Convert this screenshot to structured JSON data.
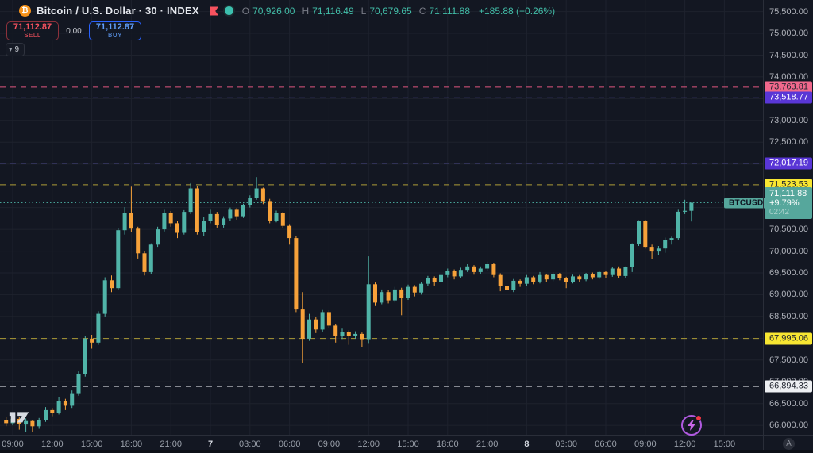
{
  "toolbar": {
    "symbol_title": "Bitcoin / U.S. Dollar · 30 · INDEX",
    "ohlc": {
      "open_label": "O",
      "open": "70,926.00",
      "high_label": "H",
      "high": "71,116.49",
      "low_label": "L",
      "low": "70,679.65",
      "close_label": "C",
      "close": "71,111.88",
      "change": "+185.88 (+0.26%)"
    },
    "sell": {
      "price": "71,112.87",
      "label": "SELL"
    },
    "spread": "0.00",
    "buy": {
      "price": "71,112.87",
      "label": "BUY"
    },
    "legend_collapsed_count": "9",
    "icons": [
      "bitcoin-icon",
      "flag-icon",
      "market-status-dot"
    ]
  },
  "axis_button_label": "A",
  "colors": {
    "background": "#131722",
    "grid": "#1e222d",
    "up": "#50b4a8",
    "down": "#f7a23a",
    "accent_teal": "#42bda8",
    "sell_red": "#f7525f",
    "buy_blue": "#2962ff"
  },
  "chart_data": {
    "type": "candlestick",
    "symbol": "BTCUSD",
    "interval_minutes": 30,
    "up_color": "#50b4a8",
    "down_color": "#f7a23a",
    "y_axis": {
      "min": 66000,
      "max": 75500,
      "tick_step": 500
    },
    "price_ticks": [
      [
        75500,
        "75,500.00"
      ],
      [
        75000,
        "75,000.00"
      ],
      [
        74500,
        "74,500.00"
      ],
      [
        74000,
        "74,000.00"
      ],
      [
        73500,
        "73,500.00"
      ],
      [
        73000,
        "73,000.00"
      ],
      [
        72500,
        "72,500.00"
      ],
      [
        72000,
        "72,000.00"
      ],
      [
        71500,
        "71,500.00"
      ],
      [
        71000,
        "71,000.00"
      ],
      [
        70500,
        "70,500.00"
      ],
      [
        70000,
        "70,000.00"
      ],
      [
        69500,
        "69,500.00"
      ],
      [
        69000,
        "69,000.00"
      ],
      [
        68500,
        "68,500.00"
      ],
      [
        68000,
        "68,000.00"
      ],
      [
        67500,
        "67,500.00"
      ],
      [
        67000,
        "67,000.00"
      ],
      [
        66500,
        "66,500.00"
      ],
      [
        66000,
        "66,000.00"
      ]
    ],
    "time_ticks": [
      {
        "t": "09:00",
        "bold": false
      },
      {
        "t": "12:00",
        "bold": false
      },
      {
        "t": "15:00",
        "bold": false
      },
      {
        "t": "18:00",
        "bold": false
      },
      {
        "t": "21:00",
        "bold": false
      },
      {
        "t": "7",
        "bold": true
      },
      {
        "t": "03:00",
        "bold": false
      },
      {
        "t": "06:00",
        "bold": false
      },
      {
        "t": "09:00",
        "bold": false
      },
      {
        "t": "12:00",
        "bold": false
      },
      {
        "t": "15:00",
        "bold": false
      },
      {
        "t": "18:00",
        "bold": false
      },
      {
        "t": "21:00",
        "bold": false
      },
      {
        "t": "8",
        "bold": true
      },
      {
        "t": "03:00",
        "bold": false
      },
      {
        "t": "06:00",
        "bold": false
      },
      {
        "t": "09:00",
        "bold": false
      },
      {
        "t": "12:00",
        "bold": false
      },
      {
        "t": "15:00",
        "bold": false
      }
    ],
    "price_lines": [
      {
        "price": 73763.81,
        "label": "73,763.81",
        "line_color": "#e0567f",
        "bg": "#f0688c",
        "text_color": "#20242f"
      },
      {
        "price": 73518.77,
        "label": "73,518.77",
        "line_color": "#6e64d8",
        "bg": "#5936d6",
        "text_color": "#ffffff"
      },
      {
        "price": 72017.19,
        "label": "72,017.19",
        "line_color": "#6e64d8",
        "bg": "#5936d6",
        "text_color": "#ffffff"
      },
      {
        "price": 71523.53,
        "label": "71,523.53",
        "line_color": "#ac9a35",
        "bg": "#f7e632",
        "text_color": "#20242f"
      },
      {
        "price": 67995.06,
        "label": "67,995.06",
        "line_color": "#ac9a35",
        "bg": "#f7e632",
        "text_color": "#20242f"
      },
      {
        "price": 66894.33,
        "label": "66,894.33",
        "line_color": "#c9ccd2",
        "bg": "#edeff2",
        "text_color": "#20242f"
      }
    ],
    "last_price": {
      "price": 71111.88,
      "label": "71,111.88",
      "change_pct": "+9.79%",
      "countdown": "02:42",
      "tag": "BTCUSD",
      "bg": "#56a79c",
      "line_color": "#46a297"
    },
    "candles": [
      [
        66120,
        66190,
        65980,
        66050
      ],
      [
        66050,
        66210,
        66000,
        66150
      ],
      [
        66150,
        66190,
        65900,
        66020
      ],
      [
        66020,
        66160,
        65840,
        66100
      ],
      [
        66100,
        66130,
        65850,
        65980
      ],
      [
        65980,
        66170,
        65920,
        66120
      ],
      [
        66120,
        66420,
        66080,
        66350
      ],
      [
        66350,
        66400,
        66210,
        66280
      ],
      [
        66280,
        66640,
        66250,
        66560
      ],
      [
        66560,
        66610,
        66350,
        66450
      ],
      [
        66450,
        66800,
        66400,
        66720
      ],
      [
        66720,
        67240,
        66680,
        67170
      ],
      [
        67170,
        68050,
        67120,
        67990
      ],
      [
        67990,
        68080,
        67760,
        67900
      ],
      [
        67900,
        68620,
        67850,
        68560
      ],
      [
        68560,
        69400,
        68500,
        69330
      ],
      [
        69330,
        69440,
        69060,
        69150
      ],
      [
        69150,
        70520,
        69100,
        70480
      ],
      [
        70480,
        71010,
        70380,
        70880
      ],
      [
        70880,
        71480,
        70440,
        70515
      ],
      [
        70515,
        70560,
        69830,
        69950
      ],
      [
        69950,
        70000,
        69440,
        69520
      ],
      [
        69520,
        70180,
        69480,
        70150
      ],
      [
        70150,
        70560,
        70100,
        70500
      ],
      [
        70500,
        70950,
        70450,
        70880
      ],
      [
        70880,
        70920,
        70560,
        70640
      ],
      [
        70640,
        70700,
        70300,
        70420
      ],
      [
        70420,
        70940,
        70380,
        70900
      ],
      [
        70900,
        71560,
        70850,
        71440
      ],
      [
        71440,
        71490,
        70380,
        70430
      ],
      [
        70430,
        70780,
        70350,
        70690
      ],
      [
        70690,
        70950,
        70640,
        70850
      ],
      [
        70850,
        70900,
        70540,
        70600
      ],
      [
        70600,
        70800,
        70540,
        70750
      ],
      [
        70750,
        71000,
        70700,
        70950
      ],
      [
        70950,
        70990,
        70720,
        70800
      ],
      [
        70800,
        71090,
        70760,
        71050
      ],
      [
        71050,
        71280,
        71000,
        71230
      ],
      [
        71230,
        71700,
        71180,
        71440
      ],
      [
        71440,
        71460,
        71080,
        71150
      ],
      [
        71150,
        71200,
        70640,
        70700
      ],
      [
        70700,
        70930,
        70660,
        70880
      ],
      [
        70880,
        70900,
        70520,
        70580
      ],
      [
        70580,
        70620,
        70150,
        70300
      ],
      [
        70300,
        70350,
        68600,
        68660
      ],
      [
        68660,
        69060,
        67440,
        67990
      ],
      [
        67990,
        68560,
        67940,
        68430
      ],
      [
        68430,
        68480,
        68120,
        68200
      ],
      [
        68200,
        68650,
        68150,
        68600
      ],
      [
        68600,
        68640,
        68230,
        68290
      ],
      [
        68290,
        68330,
        67900,
        68050
      ],
      [
        68050,
        68220,
        67980,
        68150
      ],
      [
        68150,
        68180,
        67850,
        68050
      ],
      [
        68050,
        68160,
        67990,
        68100
      ],
      [
        68100,
        68130,
        67800,
        67980
      ],
      [
        67980,
        69880,
        67890,
        69240
      ],
      [
        69240,
        69280,
        68740,
        68820
      ],
      [
        68820,
        69120,
        68780,
        69060
      ],
      [
        69060,
        69100,
        68800,
        68870
      ],
      [
        68870,
        69180,
        68820,
        69120
      ],
      [
        69120,
        69160,
        68530,
        68930
      ],
      [
        68930,
        69230,
        68880,
        69180
      ],
      [
        69180,
        69220,
        68960,
        69050
      ],
      [
        69050,
        69300,
        69000,
        69250
      ],
      [
        69250,
        69430,
        69200,
        69390
      ],
      [
        69390,
        69420,
        69210,
        69280
      ],
      [
        69280,
        69500,
        69240,
        69450
      ],
      [
        69450,
        69600,
        69400,
        69550
      ],
      [
        69550,
        69580,
        69350,
        69420
      ],
      [
        69420,
        69620,
        69380,
        69570
      ],
      [
        69570,
        69700,
        69520,
        69650
      ],
      [
        69650,
        69680,
        69460,
        69520
      ],
      [
        69520,
        69650,
        69480,
        69600
      ],
      [
        69600,
        69760,
        69550,
        69700
      ],
      [
        69700,
        69730,
        69400,
        69450
      ],
      [
        69450,
        69490,
        69080,
        69200
      ],
      [
        69200,
        69240,
        68940,
        69100
      ],
      [
        69100,
        69360,
        69060,
        69320
      ],
      [
        69320,
        69350,
        69180,
        69250
      ],
      [
        69250,
        69450,
        69200,
        69400
      ],
      [
        69400,
        69430,
        69240,
        69300
      ],
      [
        69300,
        69520,
        69260,
        69450
      ],
      [
        69450,
        69480,
        69300,
        69350
      ],
      [
        69350,
        69510,
        69310,
        69480
      ],
      [
        69480,
        69500,
        69330,
        69380
      ],
      [
        69380,
        69410,
        69150,
        69300
      ],
      [
        69300,
        69460,
        69260,
        69420
      ],
      [
        69420,
        69450,
        69290,
        69350
      ],
      [
        69350,
        69500,
        69310,
        69480
      ],
      [
        69480,
        69510,
        69350,
        69400
      ],
      [
        69400,
        69540,
        69360,
        69520
      ],
      [
        69520,
        69550,
        69390,
        69450
      ],
      [
        69450,
        69630,
        69410,
        69600
      ],
      [
        69600,
        69650,
        69380,
        69430
      ],
      [
        69430,
        69650,
        69390,
        69630
      ],
      [
        69630,
        70180,
        69520,
        70170
      ],
      [
        70170,
        70710,
        70120,
        70690
      ],
      [
        70690,
        70720,
        70060,
        70100
      ],
      [
        70100,
        70150,
        69810,
        69990
      ],
      [
        69990,
        70120,
        69900,
        70060
      ],
      [
        70060,
        70310,
        69960,
        70250
      ],
      [
        70250,
        70330,
        70150,
        70300
      ],
      [
        70300,
        70950,
        70250,
        70905
      ],
      [
        70905,
        71180,
        70850,
        70926
      ],
      [
        70926,
        71116.49,
        70679.65,
        71111.88
      ]
    ]
  }
}
